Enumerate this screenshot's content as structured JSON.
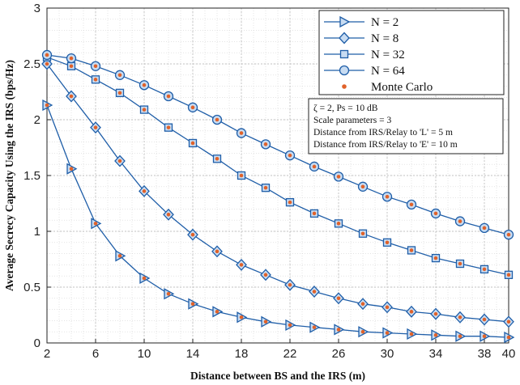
{
  "chart_data": {
    "type": "line",
    "xlabel": "Distance between BS and the IRS (m)",
    "ylabel": "Average Secrecy Capacity Using the IRS (bps/Hz)",
    "xlim": [
      2,
      40
    ],
    "ylim": [
      0,
      3
    ],
    "xticks": [
      2,
      6,
      10,
      14,
      18,
      22,
      26,
      30,
      34,
      38,
      40
    ],
    "yticks": [
      0,
      0.5,
      1,
      1.5,
      2,
      2.5,
      3
    ],
    "grid": true,
    "legend_position": "top-right",
    "x": [
      2,
      4,
      6,
      8,
      10,
      12,
      14,
      16,
      18,
      20,
      22,
      24,
      26,
      28,
      30,
      32,
      34,
      36,
      38,
      40
    ],
    "series": [
      {
        "name": "N = 2",
        "marker": "triangle-right",
        "values": [
          2.13,
          1.56,
          1.07,
          0.78,
          0.58,
          0.44,
          0.35,
          0.28,
          0.23,
          0.19,
          0.16,
          0.14,
          0.12,
          0.1,
          0.09,
          0.08,
          0.07,
          0.06,
          0.06,
          0.05
        ]
      },
      {
        "name": "N = 8",
        "marker": "diamond",
        "values": [
          2.5,
          2.21,
          1.93,
          1.63,
          1.36,
          1.15,
          0.97,
          0.82,
          0.7,
          0.61,
          0.52,
          0.46,
          0.4,
          0.35,
          0.32,
          0.28,
          0.26,
          0.23,
          0.21,
          0.19
        ]
      },
      {
        "name": "N = 32",
        "marker": "square",
        "values": [
          2.56,
          2.48,
          2.36,
          2.24,
          2.09,
          1.93,
          1.79,
          1.65,
          1.5,
          1.39,
          1.26,
          1.16,
          1.07,
          0.98,
          0.9,
          0.83,
          0.76,
          0.71,
          0.66,
          0.61
        ]
      },
      {
        "name": "N = 64",
        "marker": "circle",
        "values": [
          2.58,
          2.55,
          2.48,
          2.4,
          2.31,
          2.21,
          2.11,
          2.0,
          1.88,
          1.78,
          1.68,
          1.58,
          1.49,
          1.4,
          1.31,
          1.24,
          1.16,
          1.09,
          1.03,
          0.97
        ]
      }
    ],
    "monte_carlo": {
      "name": "Monte Carlo",
      "color": "#e0622a"
    },
    "annotation_lines": [
      "ζ = 2, Ps = 10 dB",
      "Scale parameters = 3",
      "Distance from IRS/Relay to 'L' = 5 m",
      "Distance from IRS/Relay to 'E' = 10 m"
    ],
    "line_color": "#1f5ea8",
    "marker_fill": "#c8dcf2"
  }
}
